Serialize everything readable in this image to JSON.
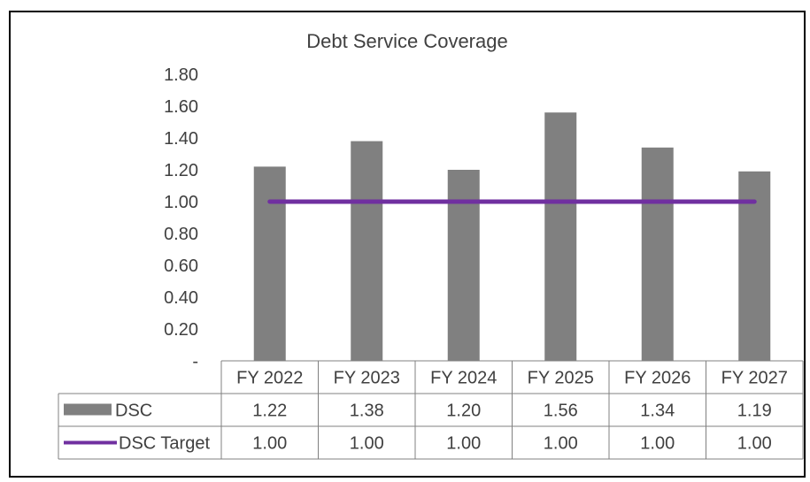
{
  "chart_data": {
    "type": "bar",
    "title": "Debt Service Coverage",
    "categories": [
      "FY 2022",
      "FY 2023",
      "FY 2024",
      "FY 2025",
      "FY 2026",
      "FY 2027"
    ],
    "series": [
      {
        "name": "DSC",
        "type": "bar",
        "color": "#808080",
        "values": [
          1.22,
          1.38,
          1.2,
          1.56,
          1.34,
          1.19
        ],
        "labels": [
          "1.22",
          "1.38",
          "1.20",
          "1.56",
          "1.34",
          "1.19"
        ]
      },
      {
        "name": "DSC Target",
        "type": "line",
        "color": "#7030a0",
        "values": [
          1.0,
          1.0,
          1.0,
          1.0,
          1.0,
          1.0
        ],
        "labels": [
          "1.00",
          "1.00",
          "1.00",
          "1.00",
          "1.00",
          "1.00"
        ]
      }
    ],
    "yticks": [
      0,
      0.2,
      0.4,
      0.6,
      0.8,
      1.0,
      1.2,
      1.4,
      1.6,
      1.8
    ],
    "ytick_labels": [
      "-",
      "0.20",
      "0.40",
      "0.60",
      "0.80",
      "1.00",
      "1.20",
      "1.40",
      "1.60",
      "1.80"
    ],
    "ylim": [
      0,
      1.8
    ],
    "grid": false,
    "legend": "data-table",
    "xlabel": "",
    "ylabel": ""
  }
}
